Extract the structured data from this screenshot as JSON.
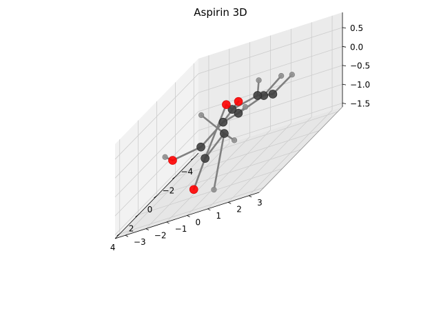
{
  "chart_data": {
    "type": "scatter3d",
    "title": "Aspirin 3D",
    "xlabel": "",
    "ylabel": "",
    "zlabel": "",
    "xlim": [
      -4.5,
      4.5
    ],
    "ylim": [
      -3.5,
      3.5
    ],
    "zlim": [
      -1.6,
      0.9
    ],
    "x_ticks": [
      -4,
      -2,
      0,
      2,
      4
    ],
    "x_tick_labels": [
      "−4",
      "−2",
      "0",
      "2",
      "4"
    ],
    "y_ticks": [
      -3,
      -2,
      -1,
      0,
      1,
      2,
      3
    ],
    "y_tick_labels": [
      "−3",
      "−2",
      "−1",
      "0",
      "1",
      "2",
      "3"
    ],
    "z_ticks": [
      -1.5,
      -1.0,
      -0.5,
      0.0,
      0.5
    ],
    "z_tick_labels": [
      "−1.5",
      "−1.0",
      "−0.5",
      "0.0",
      "0.5"
    ],
    "grid": true,
    "colors": {
      "carbon": "#404040",
      "oxygen": "#ff0000",
      "hydrogen": "#909090",
      "bond": "#808080",
      "pane_left": "#f2f2f2",
      "pane_right": "#ebebeb",
      "pane_bottom": "#e6e6e6",
      "grid": "#cccccc",
      "axis": "#000000"
    },
    "atoms": [
      {
        "id": "C1",
        "element": "C",
        "x": -2.0,
        "y": 0.8,
        "z": -0.2
      },
      {
        "id": "C2",
        "element": "C",
        "x": -1.2,
        "y": 1.6,
        "z": -0.1
      },
      {
        "id": "C3",
        "element": "C",
        "x": 0.0,
        "y": 1.4,
        "z": 0.2
      },
      {
        "id": "C4",
        "element": "C",
        "x": 0.3,
        "y": 0.3,
        "z": 0.1
      },
      {
        "id": "C5",
        "element": "C",
        "x": -0.5,
        "y": -0.5,
        "z": -0.3
      },
      {
        "id": "C6",
        "element": "C",
        "x": -1.7,
        "y": -0.3,
        "z": -0.4
      },
      {
        "id": "C7",
        "element": "C",
        "x": -0.1,
        "y": -1.4,
        "z": -0.7
      },
      {
        "id": "C8",
        "element": "C",
        "x": 3.0,
        "y": 0.2,
        "z": -0.5
      },
      {
        "id": "C9",
        "element": "C",
        "x": 3.6,
        "y": 1.4,
        "z": 0.1
      },
      {
        "id": "O1",
        "element": "O",
        "x": -0.6,
        "y": 0.2,
        "z": 0.1
      },
      {
        "id": "O2",
        "element": "O",
        "x": 1.6,
        "y": 0.6,
        "z": 0.5
      },
      {
        "id": "O3",
        "element": "O",
        "x": 2.0,
        "y": -0.8,
        "z": -1.4
      },
      {
        "id": "O4",
        "element": "O",
        "x": -0.6,
        "y": -3.0,
        "z": -0.9
      },
      {
        "id": "H1",
        "element": "H",
        "x": -3.0,
        "y": 1.2,
        "z": 0.0
      },
      {
        "id": "H2",
        "element": "H",
        "x": -1.5,
        "y": 2.4,
        "z": 0.2
      },
      {
        "id": "H3",
        "element": "H",
        "x": 1.2,
        "y": 2.0,
        "z": 0.8
      },
      {
        "id": "H4",
        "element": "H",
        "x": -2.9,
        "y": -0.5,
        "z": -0.5
      },
      {
        "id": "H5",
        "element": "H",
        "x": -0.9,
        "y": -3.5,
        "z": -0.8
      },
      {
        "id": "H6",
        "element": "H",
        "x": 4.3,
        "y": 0.6,
        "z": 0.9
      },
      {
        "id": "H7",
        "element": "H",
        "x": 3.4,
        "y": 1.8,
        "z": -0.2
      },
      {
        "id": "H8",
        "element": "H",
        "x": 3.6,
        "y": 0.9,
        "z": -1.3
      }
    ],
    "bonds": [
      [
        "C1",
        "C2"
      ],
      [
        "C2",
        "C3"
      ],
      [
        "C3",
        "C4"
      ],
      [
        "C4",
        "O1"
      ],
      [
        "O1",
        "C5"
      ],
      [
        "C5",
        "C6"
      ],
      [
        "C6",
        "C1"
      ],
      [
        "C5",
        "C7"
      ],
      [
        "C7",
        "O4"
      ],
      [
        "O4",
        "H5"
      ],
      [
        "C4",
        "O2"
      ],
      [
        "O2",
        "C8"
      ],
      [
        "C8",
        "O3"
      ],
      [
        "C8",
        "C9"
      ],
      [
        "C9",
        "H6"
      ],
      [
        "C9",
        "H7"
      ],
      [
        "C9",
        "H8"
      ],
      [
        "C1",
        "H1"
      ],
      [
        "C2",
        "H2"
      ],
      [
        "C3",
        "H3"
      ],
      [
        "C6",
        "H4"
      ]
    ]
  }
}
